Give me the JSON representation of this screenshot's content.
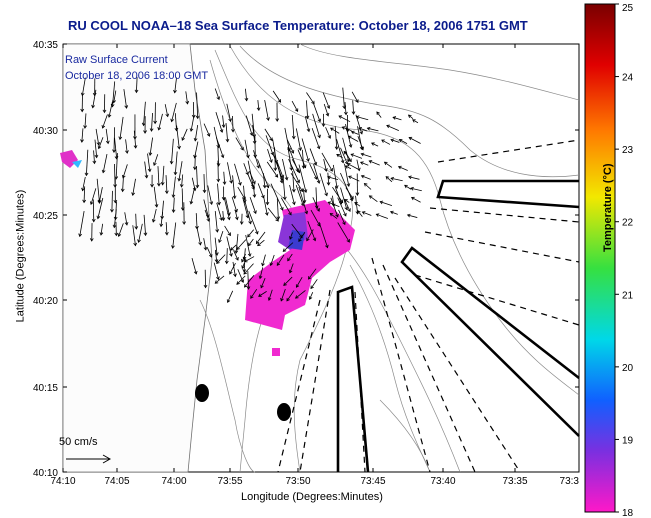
{
  "title": "RU COOL  NOAA–18  Sea Surface Temperature:  October 18, 2006 1751 GMT",
  "annotation": {
    "line1": "Raw Surface Current",
    "line2": "October 18, 2006 18:00 GMT"
  },
  "scale_label": "50 cm/s",
  "axes": {
    "xlabel": "Longitude (Degrees:Minutes)",
    "ylabel": "Latitude (Degrees:Minutes)",
    "x_ticks": [
      "74:10",
      "74:05",
      "74:00",
      "73:55",
      "73:50",
      "73:45",
      "73:40",
      "73:35",
      "73:3"
    ],
    "y_ticks": [
      "40:35",
      "40:30",
      "40:25",
      "40:20",
      "40:15",
      "40:10"
    ]
  },
  "colorbar": {
    "label": "Temperature (°C)",
    "ticks": [
      "25",
      "24",
      "23",
      "22",
      "21",
      "20",
      "19",
      "18"
    ],
    "range": [
      18,
      25
    ]
  }
}
